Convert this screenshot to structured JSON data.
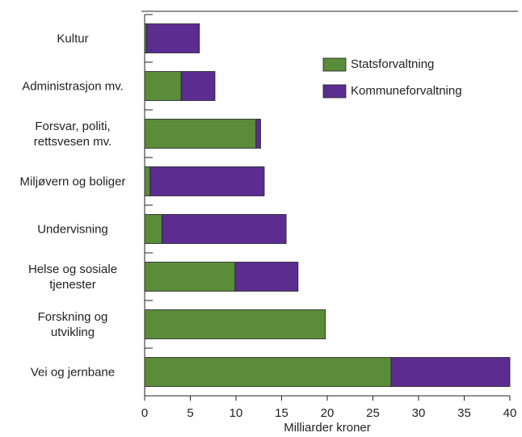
{
  "chart_data": {
    "type": "stacked_barh",
    "categories": [
      "Kultur",
      "Administrasjon mv.",
      "Forsvar, politi,\nrettsvesen mv.",
      "Miljøvern og boliger",
      "Undervisning",
      "Helse og sosiale\ntjenester",
      "Forskning og\nutvikling",
      "Vei og jernbane"
    ],
    "series": [
      {
        "name": "Statsforvaltning",
        "color": "#5a8c3a",
        "values": [
          0.2,
          4.0,
          12.2,
          0.6,
          1.9,
          9.9,
          19.8,
          27.0
        ]
      },
      {
        "name": "Kommuneforvaltning",
        "color": "#5b2d91",
        "values": [
          5.8,
          3.7,
          0.5,
          12.5,
          13.6,
          6.9,
          0,
          13.0
        ]
      }
    ],
    "xlabel": "Milliarder kroner",
    "xlim": [
      0,
      40
    ],
    "xticks": [
      0,
      5,
      10,
      15,
      20,
      25,
      30,
      35,
      40
    ],
    "legend": "upper right"
  }
}
